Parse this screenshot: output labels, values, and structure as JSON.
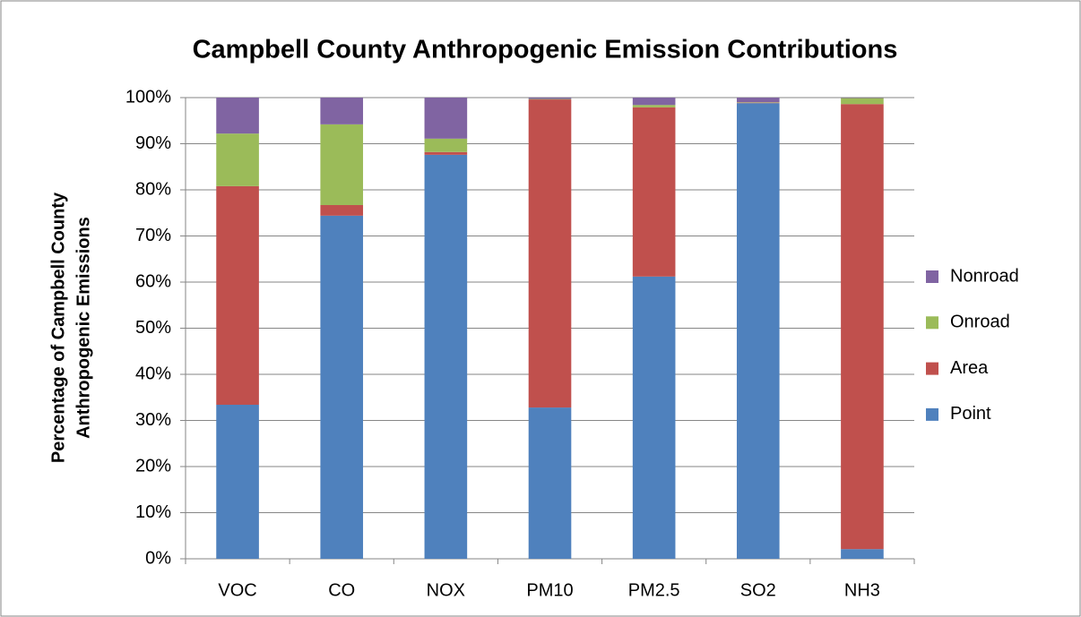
{
  "chart_data": {
    "type": "stacked_bar",
    "title": "Campbell County Anthropogenic Emission Contributions",
    "y_label": [
      "Percentage of Campbell County",
      "Anthropogenic Emissions"
    ],
    "categories": [
      "VOC",
      "CO",
      "NOX",
      "PM10",
      "PM2.5",
      "SO2",
      "NH3"
    ],
    "series": [
      {
        "name": "Point",
        "color": "#4f81bd",
        "values": [
          33.4,
          74.4,
          87.6,
          32.8,
          61.2,
          98.8,
          2.1
        ]
      },
      {
        "name": "Area",
        "color": "#c0504d",
        "values": [
          47.4,
          2.3,
          0.6,
          66.8,
          36.7,
          0.1,
          96.5
        ]
      },
      {
        "name": "Onroad",
        "color": "#9bbb59",
        "values": [
          11.4,
          17.5,
          2.9,
          0.1,
          0.5,
          0.1,
          1.3
        ]
      },
      {
        "name": "Nonroad",
        "color": "#8064a2",
        "values": [
          7.8,
          5.8,
          8.9,
          0.3,
          1.6,
          1.0,
          0.1
        ]
      }
    ],
    "ylim": [
      0,
      100
    ],
    "yticks": [
      {
        "value": 0,
        "label": "0%"
      },
      {
        "value": 10,
        "label": "10%"
      },
      {
        "value": 20,
        "label": "20%"
      },
      {
        "value": 30,
        "label": "30%"
      },
      {
        "value": 40,
        "label": "40%"
      },
      {
        "value": 50,
        "label": "50%"
      },
      {
        "value": 60,
        "label": "60%"
      },
      {
        "value": 70,
        "label": "70%"
      },
      {
        "value": 80,
        "label": "80%"
      },
      {
        "value": 90,
        "label": "90%"
      },
      {
        "value": 100,
        "label": "100%"
      }
    ],
    "grid": true,
    "legend": "right"
  }
}
